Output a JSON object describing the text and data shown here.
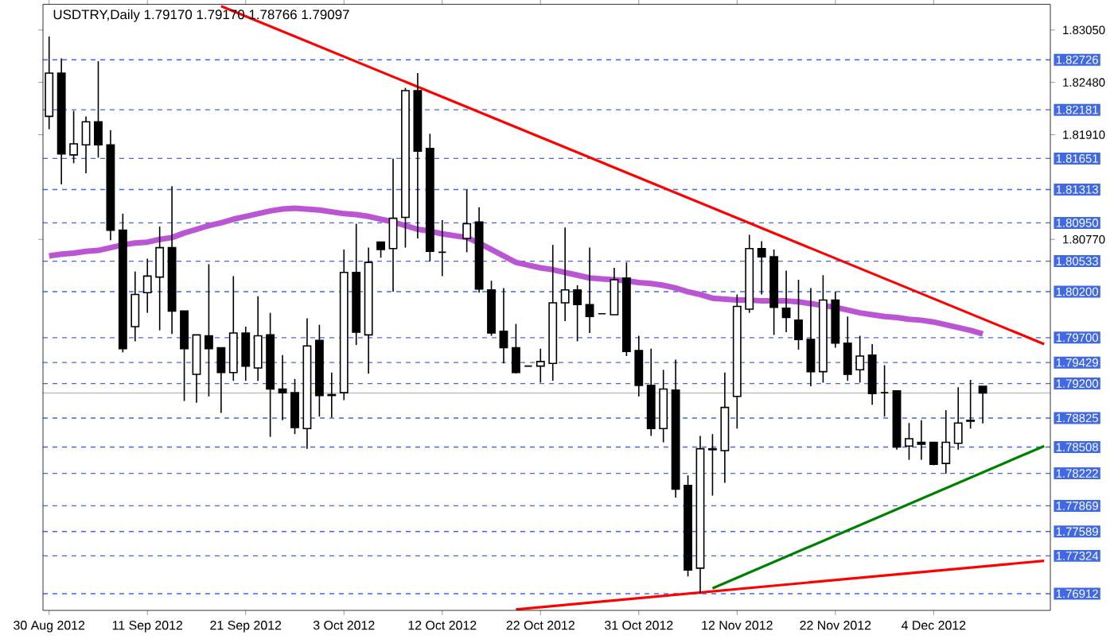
{
  "chart_data": {
    "type": "candlestick",
    "title": "USDTRY,Daily 1.79170 1.79170 1.78766 1.79097",
    "categories": [
      "30 Aug 2012",
      null,
      null,
      null,
      null,
      null,
      null,
      null,
      "11 Sep 2012",
      null,
      null,
      null,
      null,
      null,
      null,
      null,
      "21 Sep 2012",
      null,
      null,
      null,
      null,
      null,
      null,
      null,
      "3 Oct 2012",
      null,
      null,
      null,
      null,
      null,
      null,
      null,
      "12 Oct 2012",
      null,
      null,
      null,
      null,
      null,
      null,
      null,
      "22 Oct 2012",
      null,
      null,
      null,
      null,
      null,
      null,
      null,
      "31 Oct 2012",
      null,
      null,
      null,
      null,
      null,
      null,
      null,
      "12 Nov 2012",
      null,
      null,
      null,
      null,
      null,
      null,
      null,
      "22 Nov 2012",
      null,
      null,
      null,
      null,
      null,
      null,
      null,
      "4 Dec 2012",
      null,
      null,
      null,
      null,
      null,
      null,
      null,
      null,
      null
    ],
    "ohlc": [
      [
        1.8211,
        1.8298,
        1.8197,
        1.8258
      ],
      [
        1.8258,
        1.8274,
        1.8137,
        1.817
      ],
      [
        1.8169,
        1.8217,
        1.816,
        1.8181
      ],
      [
        1.818,
        1.8211,
        1.8149,
        1.8205
      ],
      [
        1.8205,
        1.8271,
        1.8166,
        1.818
      ],
      [
        1.818,
        1.8196,
        1.8076,
        1.8087
      ],
      [
        1.8087,
        1.8105,
        1.7954,
        1.7958
      ],
      [
        1.7982,
        1.8042,
        1.7966,
        1.8017
      ],
      [
        1.8019,
        1.8056,
        1.7997,
        1.8037
      ],
      [
        1.8036,
        1.8091,
        1.7978,
        1.8068
      ],
      [
        1.8068,
        1.8135,
        1.7974,
        1.7999
      ],
      [
        1.7999,
        1.7999,
        1.7901,
        1.7958
      ],
      [
        1.793,
        1.7973,
        1.7899,
        1.7973
      ],
      [
        1.7972,
        1.805,
        1.7906,
        1.7958
      ],
      [
        1.7959,
        1.7959,
        1.7888,
        1.7932
      ],
      [
        1.7932,
        1.8037,
        1.7923,
        1.7975
      ],
      [
        1.7975,
        1.7982,
        1.7923,
        1.7939
      ],
      [
        1.7937,
        1.8015,
        1.7923,
        1.7972
      ],
      [
        1.7973,
        1.7997,
        1.7862,
        1.7914
      ],
      [
        1.7914,
        1.7951,
        1.788,
        1.791
      ],
      [
        1.791,
        1.7925,
        1.7865,
        1.7872
      ],
      [
        1.7871,
        1.7991,
        1.7849,
        1.7961
      ],
      [
        1.7967,
        1.7984,
        1.7884,
        1.7907
      ],
      [
        1.7908,
        1.7932,
        1.7883,
        1.7907
      ],
      [
        1.791,
        1.8066,
        1.7902,
        1.8041
      ],
      [
        1.8041,
        1.8094,
        1.7962,
        1.7976
      ],
      [
        1.7973,
        1.8068,
        1.7931,
        1.8052
      ],
      [
        1.8074,
        1.8074,
        1.8057,
        1.8066
      ],
      [
        1.8067,
        1.8165,
        1.802,
        1.81
      ],
      [
        1.8101,
        1.8242,
        1.8068,
        1.8239
      ],
      [
        1.8239,
        1.8258,
        1.8078,
        1.8173
      ],
      [
        1.8176,
        1.8192,
        1.8053,
        1.8064
      ],
      [
        1.8063,
        1.8098,
        1.8037,
        1.8063
      ],
      null,
      [
        1.8078,
        1.8131,
        1.8063,
        1.8094
      ],
      [
        1.8096,
        1.8112,
        1.8019,
        1.8023
      ],
      [
        1.8022,
        1.8032,
        1.7972,
        1.7975
      ],
      [
        1.7977,
        1.8024,
        1.7942,
        1.7959
      ],
      [
        1.7959,
        1.7985,
        1.7931,
        1.7932
      ],
      [
        1.7939,
        1.7939,
        1.7939,
        1.7939
      ],
      [
        1.7939,
        1.7958,
        1.7921,
        1.7944
      ],
      [
        1.7942,
        1.8071,
        1.7923,
        1.8008
      ],
      [
        1.8008,
        1.809,
        1.7988,
        1.8022
      ],
      [
        1.8022,
        1.8027,
        1.7966,
        1.8006
      ],
      [
        1.8006,
        1.8068,
        1.7975,
        1.7993
      ],
      [
        1.7996,
        1.7996,
        1.7996,
        1.7996
      ],
      [
        1.7995,
        1.8046,
        1.7995,
        1.8033
      ],
      [
        1.8035,
        1.8052,
        1.795,
        1.7955
      ],
      [
        1.7956,
        1.7972,
        1.7906,
        1.7918
      ],
      [
        1.7918,
        1.7958,
        1.7863,
        1.7871
      ],
      [
        1.7871,
        1.7935,
        1.7856,
        1.7914
      ],
      [
        1.7913,
        1.7946,
        1.7796,
        1.7805
      ],
      [
        1.7809,
        1.782,
        1.771,
        1.7717
      ],
      [
        1.7719,
        1.7863,
        1.7691,
        1.7849
      ],
      [
        1.7849,
        1.7865,
        1.7798,
        1.7848
      ],
      [
        1.7847,
        1.7932,
        1.7812,
        1.7894
      ],
      [
        1.7906,
        1.8017,
        1.7871,
        1.8004
      ],
      [
        1.8001,
        1.8082,
        1.7997,
        1.8067
      ],
      [
        1.8067,
        1.8075,
        1.8017,
        1.8058
      ],
      [
        1.8058,
        1.8066,
        1.7973,
        1.8003
      ],
      [
        1.8002,
        1.8043,
        1.7976,
        1.7992
      ],
      [
        1.7989,
        1.8033,
        1.7957,
        1.7968
      ],
      [
        1.7968,
        1.8024,
        1.7917,
        1.7933
      ],
      [
        1.7933,
        1.8038,
        1.7921,
        1.8011
      ],
      [
        1.8011,
        1.802,
        1.7959,
        1.7964
      ],
      [
        1.7964,
        1.7993,
        1.7923,
        1.793
      ],
      [
        1.7935,
        1.7972,
        1.7921,
        1.795
      ],
      [
        1.7951,
        1.7963,
        1.7897,
        1.7909
      ],
      [
        1.791,
        1.794,
        1.7884,
        1.791
      ],
      [
        1.7912,
        1.7912,
        1.7848,
        1.7851
      ],
      [
        1.7852,
        1.7877,
        1.7837,
        1.786
      ],
      [
        1.7856,
        1.788,
        1.7837,
        1.7854
      ],
      [
        1.7856,
        1.7856,
        1.7831,
        1.7832
      ],
      [
        1.7833,
        1.7891,
        1.7822,
        1.7856
      ],
      [
        1.7855,
        1.7916,
        1.7848,
        1.7877
      ],
      [
        1.788,
        1.7924,
        1.7871,
        1.7879
      ],
      [
        1.7917,
        1.7917,
        1.78766,
        1.79097
      ],
      null,
      null,
      null,
      null,
      null
    ],
    "series": [
      {
        "type": "line",
        "color": "#ba55d3",
        "values": [
          1.8059,
          1.8061,
          1.8062,
          1.8064,
          1.8065,
          1.8068,
          1.8071,
          1.8073,
          1.8074,
          1.8077,
          1.8079,
          1.8084,
          1.8088,
          1.8092,
          1.8095,
          1.8099,
          1.8102,
          1.8105,
          1.8108,
          1.811,
          1.8111,
          1.811,
          1.8109,
          1.8107,
          1.8105,
          1.8104,
          1.8102,
          1.8099,
          1.8096,
          1.8092,
          1.8088,
          1.8086,
          1.8083,
          1.8081,
          1.8079,
          1.8073,
          1.8066,
          1.8059,
          1.8052,
          1.8049,
          1.8046,
          1.8044,
          1.8041,
          1.8038,
          1.8035,
          1.8034,
          1.8033,
          1.8032,
          1.803,
          1.8029,
          1.8027,
          1.8024,
          1.802,
          1.8017,
          1.8013,
          1.8012,
          1.8011,
          1.8011,
          1.801,
          1.801,
          1.801,
          1.8009,
          1.8007,
          1.8005,
          1.8003,
          1.8,
          1.7997,
          1.7995,
          1.7993,
          1.7992,
          1.799,
          1.7989,
          1.7987,
          1.7984,
          1.7981,
          1.7978,
          1.7974,
          null,
          null,
          null,
          null,
          null
        ]
      },
      {
        "type": "line",
        "color": "#ff0000",
        "values": [
          null,
          null,
          null,
          null,
          null,
          null,
          null,
          null,
          null,
          null,
          null,
          null,
          null,
          null,
          1.8331,
          null,
          null,
          null,
          null,
          null,
          null,
          null,
          null,
          null,
          null,
          null,
          null,
          null,
          null,
          null,
          null,
          null,
          null,
          null,
          null,
          null,
          null,
          null,
          null,
          null,
          null,
          null,
          null,
          null,
          null,
          null,
          null,
          null,
          null,
          null,
          null,
          null,
          null,
          null,
          null,
          null,
          null,
          null,
          null,
          null,
          null,
          null,
          null,
          null,
          null,
          null,
          null,
          null,
          null,
          null,
          null,
          null,
          null,
          null,
          null,
          null,
          null,
          null,
          null,
          null,
          null,
          1.7963
        ]
      },
      {
        "type": "line",
        "color": "#008000",
        "values": [
          null,
          null,
          null,
          null,
          null,
          null,
          null,
          null,
          null,
          null,
          null,
          null,
          null,
          null,
          null,
          null,
          null,
          null,
          null,
          null,
          null,
          null,
          null,
          null,
          null,
          null,
          null,
          null,
          null,
          null,
          null,
          null,
          null,
          null,
          null,
          null,
          null,
          null,
          null,
          null,
          null,
          null,
          null,
          null,
          null,
          null,
          null,
          null,
          null,
          null,
          null,
          null,
          null,
          null,
          1.7697,
          null,
          null,
          null,
          null,
          null,
          null,
          null,
          null,
          null,
          null,
          null,
          null,
          null,
          null,
          null,
          null,
          null,
          null,
          null,
          null,
          null,
          null,
          null,
          null,
          null,
          null,
          1.7852
        ]
      },
      {
        "type": "line",
        "color": "#ff0000",
        "values": [
          null,
          null,
          null,
          null,
          null,
          null,
          null,
          null,
          null,
          null,
          null,
          null,
          null,
          null,
          null,
          null,
          null,
          null,
          null,
          null,
          null,
          null,
          null,
          null,
          null,
          null,
          null,
          null,
          null,
          null,
          null,
          null,
          null,
          null,
          null,
          null,
          null,
          null,
          1.7674,
          null,
          null,
          null,
          null,
          null,
          null,
          null,
          null,
          null,
          null,
          null,
          null,
          null,
          null,
          null,
          null,
          null,
          null,
          null,
          null,
          null,
          null,
          null,
          null,
          null,
          null,
          null,
          null,
          null,
          null,
          null,
          null,
          null,
          null,
          null,
          null,
          null,
          null,
          null,
          null,
          null,
          null,
          1.7727
        ]
      }
    ],
    "ylim": [
      1.7673,
      1.8333
    ],
    "yticks": [
      {
        "value": 1.8305,
        "label": "1.83050"
      },
      {
        "value": 1.8248,
        "label": "1.82480"
      },
      {
        "value": 1.8191,
        "label": "1.81910"
      },
      {
        "value": 1.8077,
        "label": "1.80770"
      }
    ],
    "ref_lines": [
      {
        "axis": "y",
        "value": 1.82726,
        "label": "1.82726",
        "color": "#4169e1",
        "line_style": "dashed"
      },
      {
        "axis": "y",
        "value": 1.82181,
        "label": "1.82181",
        "color": "#4169e1",
        "line_style": "dashed"
      },
      {
        "axis": "y",
        "value": 1.81651,
        "label": "1.81651",
        "color": "#4169e1",
        "line_style": "dashed"
      },
      {
        "axis": "y",
        "value": 1.81313,
        "label": "1.81313",
        "color": "#4169e1",
        "line_style": "dashed"
      },
      {
        "axis": "y",
        "value": 1.8095,
        "label": "1.80950",
        "color": "#4169e1",
        "line_style": "dashed"
      },
      {
        "axis": "y",
        "value": 1.80533,
        "label": "1.80533",
        "color": "#4169e1",
        "line_style": "dashed"
      },
      {
        "axis": "y",
        "value": 1.802,
        "label": "1.80200",
        "color": "#4169e1",
        "line_style": "dashed"
      },
      {
        "axis": "y",
        "value": 1.797,
        "label": "1.79700",
        "color": "#4169e1",
        "line_style": "dashed"
      },
      {
        "axis": "y",
        "value": 1.79429,
        "label": "1.79429",
        "color": "#4169e1",
        "line_style": "dashed"
      },
      {
        "axis": "y",
        "value": 1.792,
        "label": "1.79200",
        "color": "#4169e1",
        "line_style": "dashed"
      },
      {
        "axis": "y",
        "value": 1.78825,
        "label": "1.78825",
        "color": "#4169e1",
        "line_style": "dashed"
      },
      {
        "axis": "y",
        "value": 1.78508,
        "label": "1.78508",
        "color": "#4169e1",
        "line_style": "dashed"
      },
      {
        "axis": "y",
        "value": 1.78222,
        "label": "1.78222",
        "color": "#4169e1",
        "line_style": "dashed"
      },
      {
        "axis": "y",
        "value": 1.77869,
        "label": "1.77869",
        "color": "#4169e1",
        "line_style": "dashed"
      },
      {
        "axis": "y",
        "value": 1.77589,
        "label": "1.77589",
        "color": "#4169e1",
        "line_style": "dashed"
      },
      {
        "axis": "y",
        "value": 1.77324,
        "label": "1.77324",
        "color": "#4169e1",
        "line_style": "dashed"
      },
      {
        "axis": "y",
        "value": 1.76912,
        "label": "1.76912",
        "color": "#4169e1",
        "line_style": "dashed"
      },
      {
        "axis": "y",
        "value": 1.79097,
        "color": "#c0c0c0",
        "line_style": "solid"
      }
    ]
  }
}
